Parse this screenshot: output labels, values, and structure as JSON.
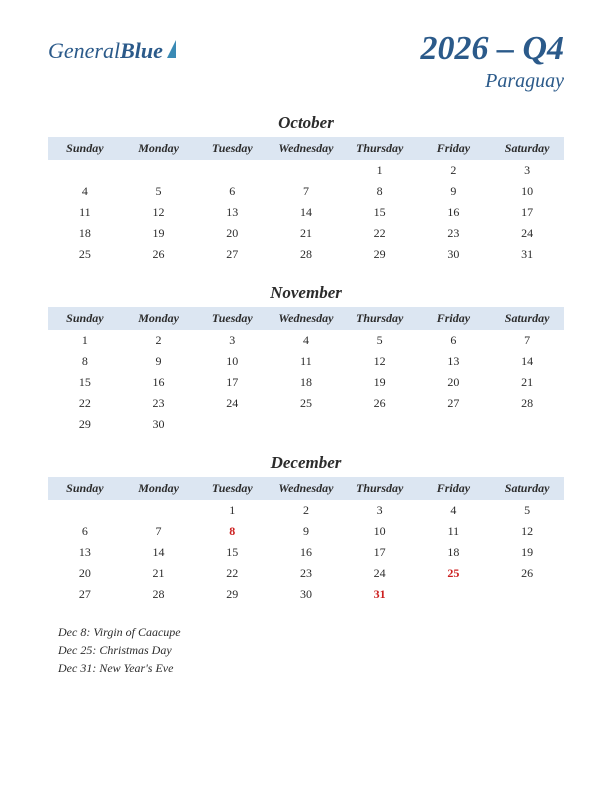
{
  "logo": {
    "text1": "General",
    "text2": "Blue"
  },
  "title": "2026 – Q4",
  "subtitle": "Paraguay",
  "dayHeaders": [
    "Sunday",
    "Monday",
    "Tuesday",
    "Wednesday",
    "Thursday",
    "Friday",
    "Saturday"
  ],
  "months": [
    {
      "name": "October",
      "weeks": [
        [
          "",
          "",
          "",
          "",
          "1",
          "2",
          "3"
        ],
        [
          "4",
          "5",
          "6",
          "7",
          "8",
          "9",
          "10"
        ],
        [
          "11",
          "12",
          "13",
          "14",
          "15",
          "16",
          "17"
        ],
        [
          "18",
          "19",
          "20",
          "21",
          "22",
          "23",
          "24"
        ],
        [
          "25",
          "26",
          "27",
          "28",
          "29",
          "30",
          "31"
        ]
      ],
      "holidays": []
    },
    {
      "name": "November",
      "weeks": [
        [
          "1",
          "2",
          "3",
          "4",
          "5",
          "6",
          "7"
        ],
        [
          "8",
          "9",
          "10",
          "11",
          "12",
          "13",
          "14"
        ],
        [
          "15",
          "16",
          "17",
          "18",
          "19",
          "20",
          "21"
        ],
        [
          "22",
          "23",
          "24",
          "25",
          "26",
          "27",
          "28"
        ],
        [
          "29",
          "30",
          "",
          "",
          "",
          "",
          ""
        ]
      ],
      "holidays": []
    },
    {
      "name": "December",
      "weeks": [
        [
          "",
          "",
          "1",
          "2",
          "3",
          "4",
          "5"
        ],
        [
          "6",
          "7",
          "8",
          "9",
          "10",
          "11",
          "12"
        ],
        [
          "13",
          "14",
          "15",
          "16",
          "17",
          "18",
          "19"
        ],
        [
          "20",
          "21",
          "22",
          "23",
          "24",
          "25",
          "26"
        ],
        [
          "27",
          "28",
          "29",
          "30",
          "31",
          "",
          ""
        ]
      ],
      "holidays": [
        "8",
        "25",
        "31"
      ]
    }
  ],
  "holidayList": [
    "Dec 8: Virgin of Caacupe",
    "Dec 25: Christmas Day",
    "Dec 31: New Year's Eve"
  ],
  "colors": {
    "headerBg": "#dce6f2",
    "brand": "#2b5a8a",
    "text": "#2c2c2c",
    "holiday": "#cc1f1f",
    "background": "#ffffff"
  }
}
